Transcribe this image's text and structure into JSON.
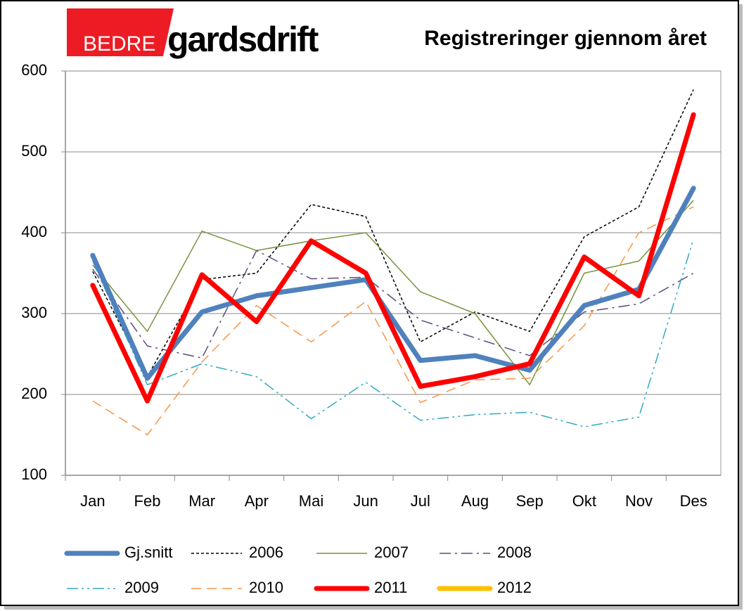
{
  "brand": {
    "prefix": "BEDRE",
    "name": "gardsdrift"
  },
  "chart_data": {
    "type": "line",
    "title": "Registreringer gjennom året",
    "categories": [
      "Jan",
      "Feb",
      "Mar",
      "Apr",
      "Mai",
      "Jun",
      "Jul",
      "Aug",
      "Sep",
      "Okt",
      "Nov",
      "Des"
    ],
    "ylim": [
      100,
      600
    ],
    "yticks": [
      100,
      200,
      300,
      400,
      500,
      600
    ],
    "grid": true,
    "legend": "bottom",
    "series": [
      {
        "name": "Gj.snitt",
        "color": "#4f81bd",
        "style": "solid",
        "line": "thick",
        "values": [
          372,
          220,
          302,
          322,
          332,
          342,
          242,
          248,
          230,
          310,
          330,
          455
        ]
      },
      {
        "name": "2006",
        "color": "#000000",
        "style": "dotted",
        "line": "thin",
        "values": [
          352,
          222,
          342,
          350,
          435,
          420,
          265,
          302,
          278,
          395,
          432,
          577
        ]
      },
      {
        "name": "2007",
        "color": "#77933c",
        "style": "solid",
        "line": "thin",
        "values": [
          360,
          278,
          402,
          378,
          390,
          400,
          327,
          300,
          212,
          350,
          365,
          440
        ]
      },
      {
        "name": "2008",
        "color": "#604a7b",
        "style": "dashdot",
        "line": "thin",
        "values": [
          355,
          260,
          245,
          378,
          343,
          345,
          292,
          270,
          248,
          302,
          312,
          350
        ]
      },
      {
        "name": "2009",
        "color": "#31a9c4",
        "style": "dashdotdot",
        "line": "thin",
        "values": [
          365,
          212,
          238,
          222,
          170,
          215,
          168,
          175,
          178,
          160,
          172,
          392
        ]
      },
      {
        "name": "2010",
        "color": "#f79646",
        "style": "dashed",
        "line": "thin",
        "values": [
          192,
          150,
          240,
          310,
          265,
          315,
          190,
          218,
          220,
          285,
          400,
          432
        ]
      },
      {
        "name": "2011",
        "color": "#ff0000",
        "style": "solid",
        "line": "thick",
        "values": [
          335,
          192,
          348,
          290,
          390,
          350,
          210,
          222,
          238,
          370,
          322,
          546
        ]
      },
      {
        "name": "2012",
        "color": "#ffc000",
        "style": "solid",
        "line": "thick",
        "values": [
          null,
          null,
          null,
          null,
          null,
          null,
          null,
          null,
          null,
          null,
          null,
          null
        ]
      }
    ]
  }
}
